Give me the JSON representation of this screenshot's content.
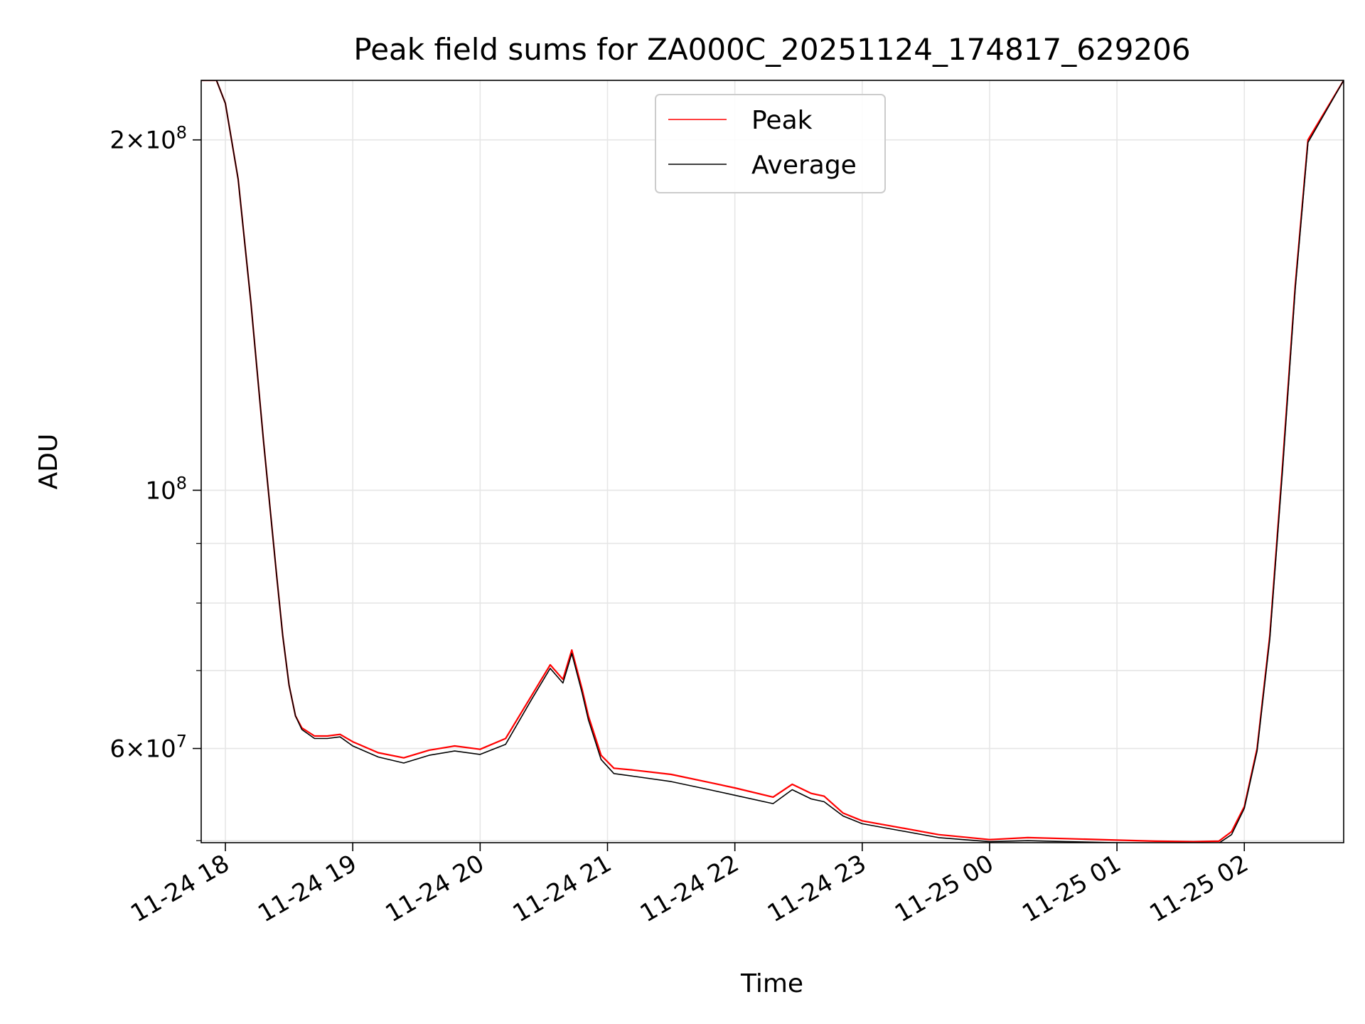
{
  "chart_data": {
    "type": "line",
    "title": "Peak field sums for ZA000C_20251124_174817_629206",
    "xlabel": "Time",
    "ylabel": "ADU",
    "yscale": "log",
    "ylim": [
      49800000,
      225000000
    ],
    "xlim": [
      17.81,
      26.78
    ],
    "grid": true,
    "legend_position": "upper-center",
    "x_tick_values": [
      18,
      19,
      20,
      21,
      22,
      23,
      24,
      25,
      26
    ],
    "x_tick_labels": [
      "11-24 18",
      "11-24 19",
      "11-24 20",
      "11-24 21",
      "11-24 22",
      "11-24 23",
      "11-25 00",
      "11-25 01",
      "11-25 02"
    ],
    "y_major_ticks": [
      {
        "value": 200000000,
        "mantissa": "2×10",
        "exp": "8"
      },
      {
        "value": 100000000,
        "mantissa": "10",
        "exp": "8"
      },
      {
        "value": 60000000,
        "mantissa": "6×10",
        "exp": "7"
      }
    ],
    "y_minor_ticks": [
      50000000,
      70000000,
      80000000,
      90000000
    ],
    "series": [
      {
        "name": "Peak",
        "color": "#ff0000",
        "x": [
          17.81,
          17.93,
          18.0,
          18.1,
          18.2,
          18.3,
          18.4,
          18.45,
          18.5,
          18.55,
          18.6,
          18.7,
          18.8,
          18.9,
          19.0,
          19.2,
          19.4,
          19.6,
          19.8,
          20.0,
          20.2,
          20.4,
          20.55,
          20.65,
          20.72,
          20.8,
          20.85,
          20.95,
          21.05,
          21.2,
          21.5,
          21.8,
          22.0,
          22.3,
          22.45,
          22.6,
          22.7,
          22.85,
          23.0,
          23.3,
          23.6,
          24.0,
          24.3,
          24.6,
          25.0,
          25.3,
          25.6,
          25.8,
          25.9,
          26.0,
          26.1,
          26.2,
          26.3,
          26.4,
          26.5,
          26.78
        ],
        "y": [
          225000000,
          225000000,
          215000000,
          185000000,
          145000000,
          110000000,
          85000000,
          75000000,
          68000000,
          64000000,
          62500000,
          61500000,
          61500000,
          61700000,
          60800000,
          59500000,
          58900000,
          59800000,
          60300000,
          59900000,
          61200000,
          66500000,
          70800000,
          68800000,
          72900000,
          67500000,
          64000000,
          59200000,
          57700000,
          57500000,
          57000000,
          56100000,
          55500000,
          54500000,
          55900000,
          54900000,
          54600000,
          52800000,
          52000000,
          51300000,
          50600000,
          50100000,
          50300000,
          50200000,
          50050000,
          49950000,
          49900000,
          49950000,
          50900000,
          53500000,
          60000000,
          75000000,
          105000000,
          150000000,
          200000000,
          225000000
        ]
      },
      {
        "name": "Average",
        "color": "#000000",
        "x": [
          17.81,
          17.93,
          18.0,
          18.1,
          18.2,
          18.3,
          18.4,
          18.45,
          18.5,
          18.55,
          18.6,
          18.7,
          18.8,
          18.9,
          19.0,
          19.2,
          19.4,
          19.6,
          19.8,
          20.0,
          20.2,
          20.4,
          20.55,
          20.65,
          20.72,
          20.8,
          20.85,
          20.95,
          21.05,
          21.2,
          21.5,
          21.8,
          22.0,
          22.3,
          22.45,
          22.6,
          22.7,
          22.85,
          23.0,
          23.3,
          23.6,
          24.0,
          24.3,
          24.6,
          25.0,
          25.3,
          25.6,
          25.8,
          25.9,
          26.0,
          26.1,
          26.2,
          26.3,
          26.4,
          26.5,
          26.78
        ],
        "y": [
          225000000,
          225000000,
          215000000,
          185000000,
          145000000,
          110000000,
          85000000,
          75000000,
          68000000,
          64000000,
          62300000,
          61200000,
          61200000,
          61400000,
          60300000,
          59000000,
          58300000,
          59200000,
          59700000,
          59300000,
          60500000,
          66000000,
          70300000,
          68300000,
          72400000,
          67000000,
          63500000,
          58700000,
          57100000,
          56800000,
          56200000,
          55300000,
          54700000,
          53800000,
          55300000,
          54300000,
          54000000,
          52500000,
          51700000,
          51000000,
          50300000,
          49900000,
          50000000,
          49900000,
          49800000,
          49700000,
          49650000,
          49750000,
          50600000,
          53300000,
          59700000,
          74500000,
          104000000,
          149000000,
          199000000,
          225000000
        ]
      }
    ]
  }
}
